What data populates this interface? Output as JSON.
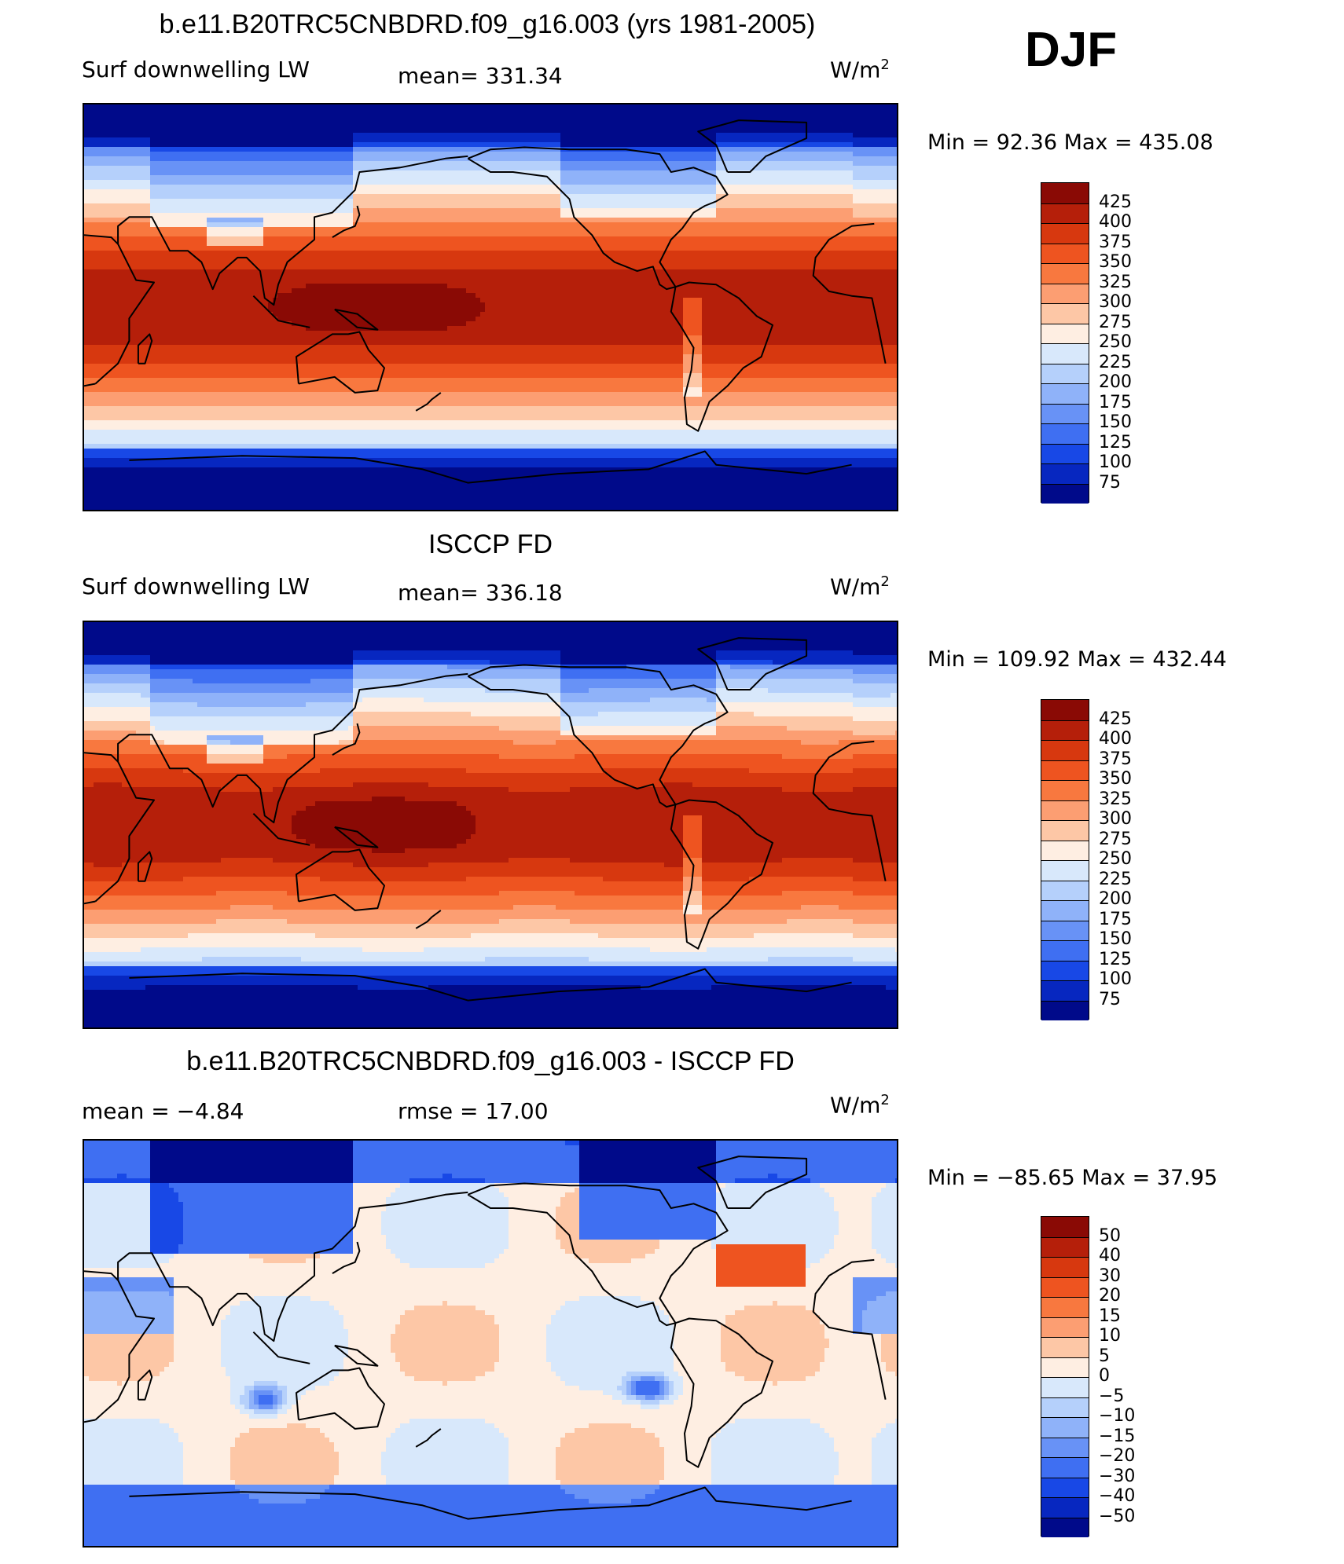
{
  "season": "DJF",
  "panels": [
    {
      "id": "model",
      "title": "b.e11.B20TRC5CNBDRD.f09_g16.003 (yrs 1981-2005)",
      "left_text": "Surf  downwelling LW",
      "center_text": "mean=  331.34",
      "units": "W/m",
      "units_sup": "2",
      "minmax": "Min  =    92.36  Max  =  435.08",
      "field": "abs_model",
      "colorbar": {
        "labels": [
          "425",
          "400",
          "375",
          "350",
          "325",
          "300",
          "275",
          "250",
          "225",
          "200",
          "175",
          "150",
          "125",
          "100",
          "75"
        ],
        "colors": [
          "#8a0a05",
          "#b51f0a",
          "#d7380f",
          "#ee5420",
          "#f8783f",
          "#fc9e72",
          "#fdc7a6",
          "#feeee2",
          "#d8e8fb",
          "#b5d0fb",
          "#8fb2f9",
          "#6892f6",
          "#3f6ff2",
          "#1848e6",
          "#0727c0",
          "#000a8a"
        ]
      }
    },
    {
      "id": "obs",
      "title": "ISCCP FD",
      "left_text": "Surf  downwelling LW",
      "center_text": "mean=  336.18",
      "units": "W/m",
      "units_sup": "2",
      "minmax": "Min  =  109.92  Max  =  432.44",
      "field": "abs_obs",
      "colorbar": {
        "labels": [
          "425",
          "400",
          "375",
          "350",
          "325",
          "300",
          "275",
          "250",
          "225",
          "200",
          "175",
          "150",
          "125",
          "100",
          "75"
        ],
        "colors": [
          "#8a0a05",
          "#b51f0a",
          "#d7380f",
          "#ee5420",
          "#f8783f",
          "#fc9e72",
          "#fdc7a6",
          "#feeee2",
          "#d8e8fb",
          "#b5d0fb",
          "#8fb2f9",
          "#6892f6",
          "#3f6ff2",
          "#1848e6",
          "#0727c0",
          "#000a8a"
        ]
      }
    },
    {
      "id": "diff",
      "title": "b.e11.B20TRC5CNBDRD.f09_g16.003 - ISCCP FD",
      "left_text": "mean  =    −4.84",
      "center_text": "rmse  =    17.00",
      "units": "W/m",
      "units_sup": "2",
      "minmax": "Min  =  −85.65  Max  =    37.95",
      "field": "diff",
      "colorbar": {
        "labels": [
          "50",
          "40",
          "30",
          "20",
          "15",
          "10",
          "5",
          "0",
          "−5",
          "−10",
          "−15",
          "−20",
          "−30",
          "−40",
          "−50"
        ],
        "colors": [
          "#8a0a05",
          "#b51f0a",
          "#d7380f",
          "#ee5420",
          "#f8783f",
          "#fc9e72",
          "#fdc7a6",
          "#feeee2",
          "#d8e8fb",
          "#b5d0fb",
          "#8fb2f9",
          "#6892f6",
          "#3f6ff2",
          "#1848e6",
          "#0727c0",
          "#000a8a"
        ]
      }
    }
  ]
}
